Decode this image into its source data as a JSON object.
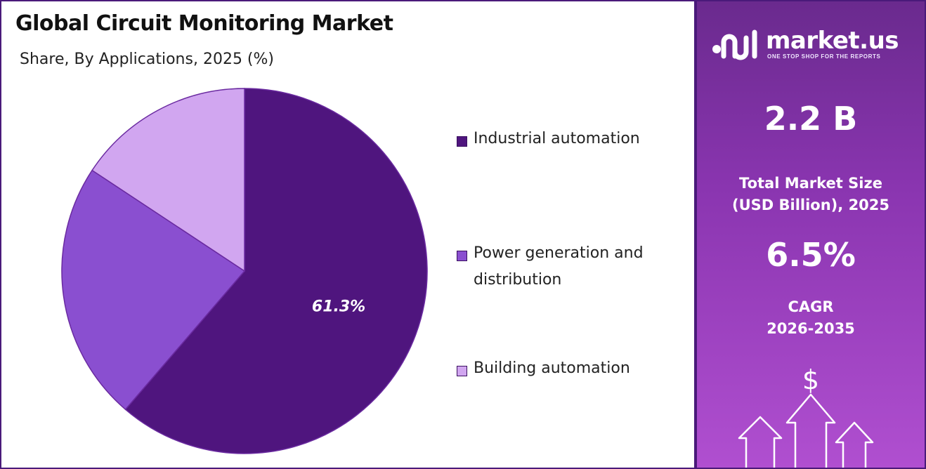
{
  "title": "Global Circuit Monitoring Market",
  "subtitle": "Share, By Applications, 2025 (%)",
  "chart_data": {
    "type": "pie",
    "title": "Global Circuit Monitoring Market",
    "subtitle": "Share, By Applications, 2025 (%)",
    "labels": [
      "Industrial automation",
      "Power generation and distribution",
      "Building automation"
    ],
    "values": [
      61.3,
      23.0,
      15.7
    ],
    "colors": [
      "#4f157e",
      "#8a4fd0",
      "#d1a6f0"
    ],
    "data_labels": [
      "61.3%",
      "",
      ""
    ],
    "legend_position": "right"
  },
  "legend": [
    {
      "label_line1": "Industrial automation",
      "label_line2": "",
      "color": "#4f157e"
    },
    {
      "label_line1": "Power generation and",
      "label_line2": "distribution",
      "color": "#8a4fd0"
    },
    {
      "label_line1": "Building automation",
      "label_line2": "",
      "color": "#d1a6f0"
    }
  ],
  "brand": {
    "name": "market.us",
    "tagline": "ONE STOP SHOP FOR THE REPORTS"
  },
  "stats": {
    "market_size": "2.2 B",
    "market_size_label_line1": "Total Market Size",
    "market_size_label_line2": "(USD Billion), 2025",
    "cagr": "6.5%",
    "cagr_label_line1": "CAGR",
    "cagr_label_line2": "2026-2035"
  },
  "icons": [
    "dollar-icon",
    "growth-arrows-icon",
    "market-us-logo-icon"
  ]
}
